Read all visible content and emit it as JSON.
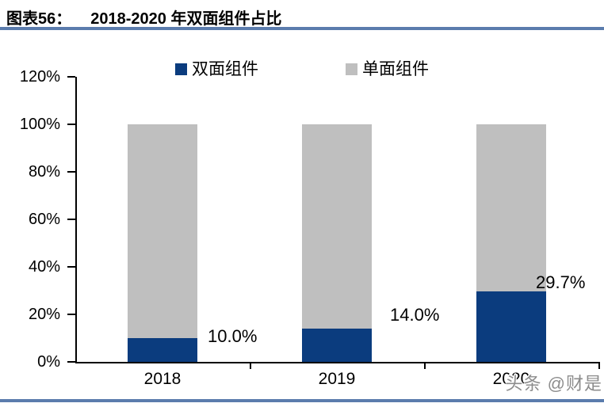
{
  "header": {
    "figure_label": "图表56：",
    "title": "2018-2020 年双面组件占比"
  },
  "watermark": "头条 @财是",
  "colors": {
    "rule_blue": "#5B7CAD",
    "bifacial_blue": "#0B3C7E",
    "monofacial_gray": "#BFBFBF",
    "axis_black": "#000000",
    "watermark_gray": "#8C8C8C"
  },
  "chart_data": {
    "type": "bar",
    "stacked": true,
    "title": "2018-2020 年双面组件占比",
    "categories": [
      "2018",
      "2019",
      "2020"
    ],
    "series": [
      {
        "name": "双面组件",
        "color": "#0B3C7E",
        "values": [
          10.0,
          14.0,
          29.7
        ]
      },
      {
        "name": "单面组件",
        "color": "#BFBFBF",
        "values": [
          90.0,
          86.0,
          70.3
        ]
      }
    ],
    "data_labels": [
      "10.0%",
      "14.0%",
      "29.7%"
    ],
    "xlabel": "",
    "ylabel": "",
    "ylim": [
      0,
      120
    ],
    "ytick_step": 20,
    "ytick_labels": [
      "0%",
      "20%",
      "40%",
      "60%",
      "80%",
      "100%",
      "120%"
    ],
    "legend_position": "top",
    "grid": false
  }
}
